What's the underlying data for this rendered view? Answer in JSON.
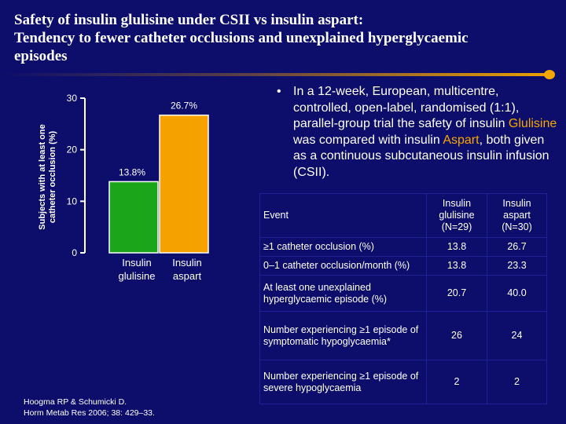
{
  "title": {
    "line1": "Safety of insulin glulisine under CSII vs insulin aspart:",
    "line2": "Tendency to fewer catheter occlusions and unexplained hyperglycaemic",
    "line3": "episodes"
  },
  "colors": {
    "background": "#0d0d6b",
    "glulisine_bar": "#1aa51a",
    "aspart_bar": "#f5a200",
    "accent": "#f5a800"
  },
  "chart_data": {
    "type": "bar",
    "categories": [
      "Insulin glulisine",
      "Insulin aspart"
    ],
    "category_lines": [
      [
        "Insulin",
        "glulisine"
      ],
      [
        "Insulin",
        "aspart"
      ]
    ],
    "values": [
      13.8,
      26.7
    ],
    "data_labels": [
      "13.8%",
      "26.7%"
    ],
    "ylabel_lines": [
      "Subjects with at least one",
      "catheter occlusion (%)"
    ],
    "ylim": [
      0,
      30
    ],
    "yticks": [
      0,
      10,
      20,
      30
    ],
    "title": ""
  },
  "bullet": {
    "symbol": "•",
    "part1": "In a 12-week, European, multicentre, controlled, open-label, randomised (1:1), parallel-group trial the safety of insulin ",
    "glulisine": "Glulisine",
    "part2": " was compared with insulin ",
    "aspart": "Aspart",
    "part3": ", both given as a continuous subcutaneous insulin infusion (CSII)."
  },
  "table": {
    "headers": [
      "Event",
      "Insulin glulisine (N=29)",
      "Insulin aspart (N=30)"
    ],
    "rows": [
      [
        "≥1 catheter occlusion (%)",
        "13.8",
        "26.7"
      ],
      [
        "0–1 catheter occlusion/month (%)",
        "13.8",
        "23.3"
      ],
      [
        "At least one unexplained hyperglycaemic episode (%)",
        "20.7",
        "40.0"
      ],
      [
        "Number experiencing ≥1 episode of symptomatic hypoglycaemia*",
        "26",
        "24"
      ],
      [
        "Number experiencing ≥1 episode of severe hypoglycaemia",
        "2",
        "2"
      ]
    ]
  },
  "reference": {
    "line1": "Hoogma RP & Schumicki D.",
    "line2": "Horm Metab Res 2006; 38: 429–33."
  }
}
